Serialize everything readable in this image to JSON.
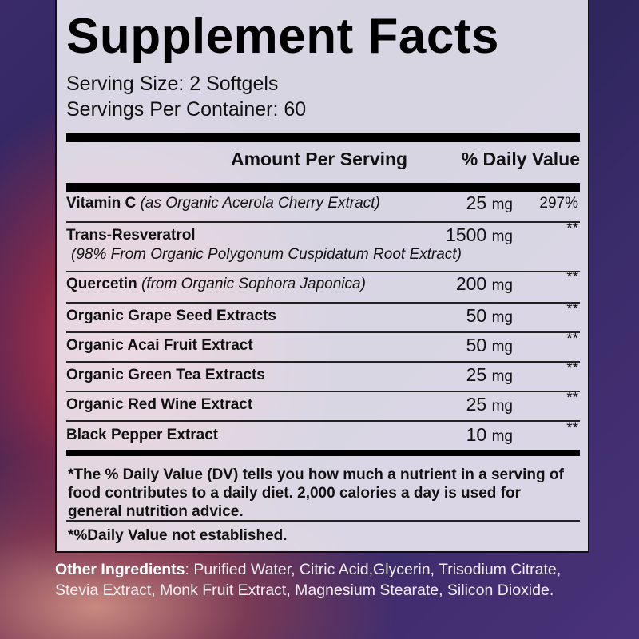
{
  "title": "Supplement Facts",
  "serving_size": "Serving Size: 2 Softgels",
  "servings_per_container": "Servings Per Container: 60",
  "header": {
    "amount": "Amount Per Serving",
    "dv": "% Daily Value"
  },
  "rows": [
    {
      "name": "Vitamin C",
      "note": "(as Organic Acerola Cherry Extract)",
      "amount": "25",
      "unit": "mg",
      "dv": "297%"
    },
    {
      "name": "Trans-Resveratrol",
      "note": "(98% From Organic Polygonum Cuspidatum Root Extract)",
      "amount": "1500",
      "unit": "mg",
      "dv": "**"
    },
    {
      "name": "Quercetin",
      "note": "(from Organic Sophora Japonica)",
      "amount": "200",
      "unit": "mg",
      "dv": "**"
    },
    {
      "name": "Organic Grape Seed Extracts",
      "amount": "50",
      "unit": "mg",
      "dv": "**"
    },
    {
      "name": "Organic Acai Fruit Extract",
      "amount": "50",
      "unit": "mg",
      "dv": "**"
    },
    {
      "name": "Organic Green Tea Extracts",
      "amount": "25",
      "unit": "mg",
      "dv": "**"
    },
    {
      "name": "Organic Red Wine Extract",
      "amount": "25",
      "unit": "mg",
      "dv": "**"
    },
    {
      "name": "Black Pepper Extract",
      "amount": "10",
      "unit": "mg",
      "dv": "**"
    }
  ],
  "footnote": "*The % Daily Value (DV) tells you how much a nutrient in a serving of food contributes to a daily diet.  2,000 calories a day is used for general nutrition advice.",
  "footnote2": "*%Daily Value not established.",
  "other_ingredients": {
    "label": "Other Ingredients",
    "text": ": Purified Water, Citric Acid,Glycerin, Trisodium Citrate, Stevia Extract, Monk Fruit Extract, Magnesium Stearate, Silicon Dioxide."
  }
}
